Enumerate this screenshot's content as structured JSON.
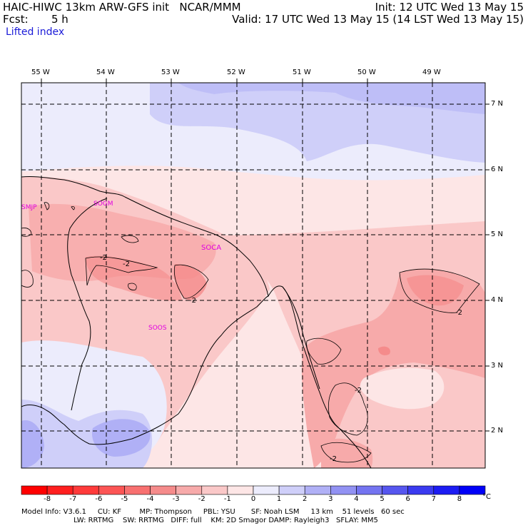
{
  "header": {
    "title": "HAIC-HIWC 13km ARW-GFS init   NCAR/MMM",
    "fcst_label": "Fcst:",
    "fcst_value": "5 h",
    "init": "Init: 12 UTC Wed 13 May 15",
    "valid": "Valid: 17 UTC Wed 13 May 15 (14 LST Wed 13 May 15)",
    "field": "Lifted index"
  },
  "map": {
    "lon_labels": [
      "55 W",
      "54 W",
      "53 W",
      "52 W",
      "51 W",
      "50 W",
      "49 W"
    ],
    "lat_labels": [
      "7 N",
      "6 N",
      "5 N",
      "4 N",
      "3 N",
      "2 N"
    ],
    "stations": [
      "SMJP",
      "SOGM",
      "SOCA",
      "SOOS"
    ],
    "contour_labels": [
      "-2",
      "-2",
      "-2",
      "-2",
      "-2",
      "-2"
    ]
  },
  "colorbar": {
    "ticks": [
      "-8",
      "-7",
      "-6",
      "-5",
      "-4",
      "-3",
      "-2",
      "-1",
      "0",
      "1",
      "2",
      "3",
      "4",
      "5",
      "6",
      "7",
      "8"
    ],
    "unit": "°C",
    "colors": [
      "#ff0000",
      "#ff1f1f",
      "#ff3a3a",
      "#fc5555",
      "#f87070",
      "#f58b8b",
      "#f7aaaa",
      "#fac8c8",
      "#fde6e6",
      "#ececfc",
      "#cfcff9",
      "#b0b0f6",
      "#9292f3",
      "#7474f1",
      "#5656ef",
      "#3a3af0",
      "#1c1cf3",
      "#0000f8"
    ]
  },
  "footer": {
    "line1": "Model Info: V3.6.1     CU: KF        MP: Thompson     PBL: YSU       SF: Noah LSM     13 km    51 levels   60 sec",
    "line2": "                       LW: RRTMG    SW: RRTMG   DIFF: full    KM: 2D Smagor DAMP: Rayleigh3   SFLAY: MM5"
  }
}
